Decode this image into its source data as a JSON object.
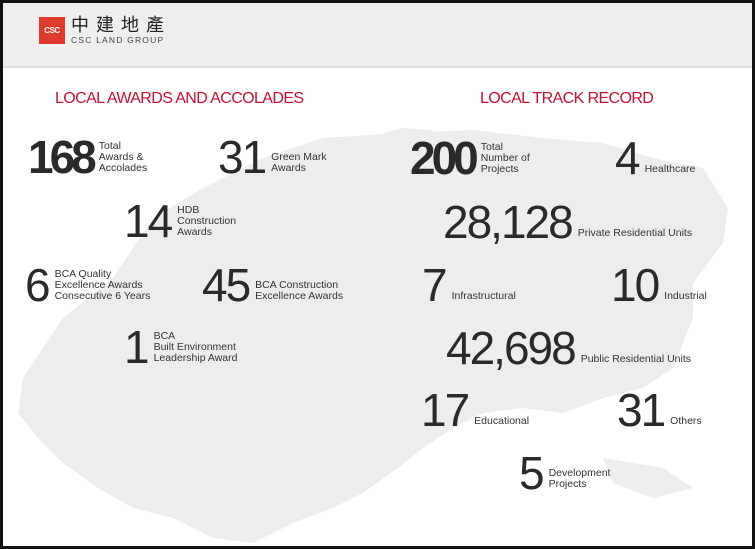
{
  "header": {
    "logo_mark": "CSC",
    "logo_cn": "中建地產",
    "logo_en": "CSC LAND GROUP"
  },
  "colors": {
    "accent": "#c8102e",
    "logo": "#e03a2a",
    "map": "#ededed"
  },
  "awards": {
    "title": "LOCAL AWARDS AND ACCOLADES",
    "items": [
      {
        "value": "168",
        "label": "Total\nAwards &\nAccolades"
      },
      {
        "value": "31",
        "label": "Green Mark\nAwards"
      },
      {
        "value": "14",
        "label": "HDB\nConstruction\nAwards"
      },
      {
        "value": "6",
        "label": "BCA Quality\nExcellence Awards\nConsecutive 6 Years"
      },
      {
        "value": "45",
        "label": "BCA Construction\nExcellence Awards"
      },
      {
        "value": "1",
        "label": "BCA\nBuilt Environment\nLeadership Award"
      }
    ]
  },
  "track": {
    "title": "LOCAL TRACK RECORD",
    "items": [
      {
        "value": "200",
        "label": "Total\nNumber of\nProjects"
      },
      {
        "value": "4",
        "label": "Healthcare"
      },
      {
        "value": "28,128",
        "label": "Private Residential Units"
      },
      {
        "value": "7",
        "label": "Infrastructural"
      },
      {
        "value": "10",
        "label": "Industrial"
      },
      {
        "value": "42,698",
        "label": "Public Residential Units"
      },
      {
        "value": "17",
        "label": "Educational"
      },
      {
        "value": "31",
        "label": "Others"
      },
      {
        "value": "5",
        "label": "Development\nProjects"
      }
    ]
  }
}
